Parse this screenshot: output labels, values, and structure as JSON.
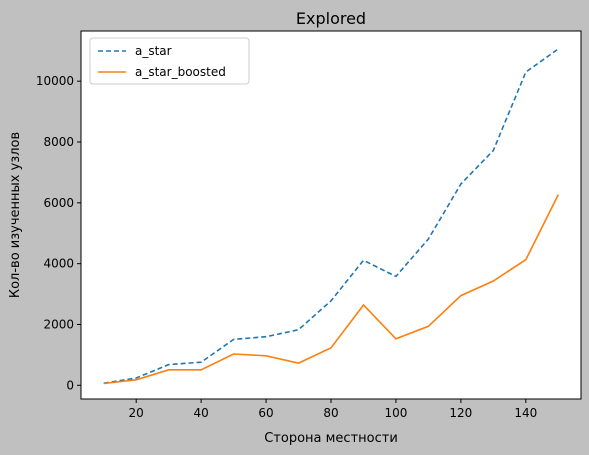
{
  "chart_data": {
    "type": "line",
    "title": "Explored",
    "xlabel": "Сторона местности",
    "ylabel": "Кол-во изученных узлов",
    "xlim": [
      3,
      157
    ],
    "ylim": [
      -450,
      11650
    ],
    "xticks": [
      20,
      40,
      60,
      80,
      100,
      120,
      140
    ],
    "yticks": [
      0,
      2000,
      4000,
      6000,
      8000,
      10000
    ],
    "legend_position": "top-left",
    "grid": false,
    "x": [
      10,
      20,
      30,
      40,
      50,
      60,
      70,
      80,
      90,
      100,
      110,
      120,
      130,
      140,
      150
    ],
    "series": [
      {
        "name": "a_star",
        "style": "dashed",
        "color": "#1f77b4",
        "values": [
          70,
          240,
          680,
          760,
          1510,
          1600,
          1830,
          2780,
          4110,
          3580,
          4810,
          6620,
          7720,
          10300,
          11060
        ]
      },
      {
        "name": "a_star_boosted",
        "style": "solid",
        "color": "#ff7f0e",
        "values": [
          60,
          180,
          510,
          510,
          1030,
          970,
          730,
          1230,
          2640,
          1530,
          1940,
          2950,
          3430,
          4130,
          6270
        ]
      }
    ]
  }
}
